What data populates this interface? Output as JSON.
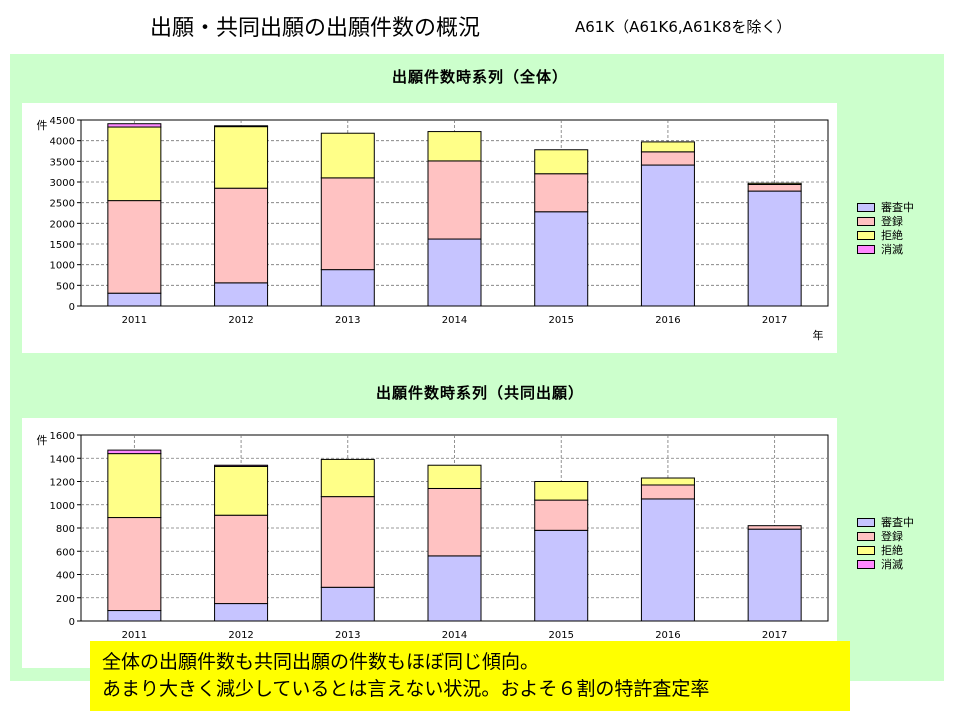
{
  "page": {
    "title": "出願・共同出願の出願件数の概況",
    "subtitle": "A61K（A61K6,A61K8を除く）"
  },
  "summary": {
    "line1": "全体の出願件数も共同出願の件数もほぼ同じ傾向。",
    "line2": "あまり大きく減少しているとは言えない状況。およそ６割の特許査定率"
  },
  "colors": {
    "審査中": "#c6c4ff",
    "登録": "#ffc2c2",
    "拒絶": "#ffff88",
    "消滅": "#ff88ff"
  },
  "chart_data": [
    {
      "type": "bar",
      "stacked": true,
      "title": "出願件数時系列（全体）",
      "ylabel": "件",
      "xlabel": "年",
      "ylim": [
        0,
        4500
      ],
      "yticks": [
        0,
        500,
        1000,
        1500,
        2000,
        2500,
        3000,
        3500,
        4000,
        4500
      ],
      "grid": true,
      "legend_position": "right",
      "categories": [
        "2011",
        "2012",
        "2013",
        "2014",
        "2015",
        "2016",
        "2017"
      ],
      "series": [
        {
          "name": "審査中",
          "values": [
            310,
            560,
            880,
            1620,
            2280,
            3410,
            2780
          ]
        },
        {
          "name": "登録",
          "values": [
            2240,
            2290,
            2220,
            1890,
            920,
            320,
            160
          ]
        },
        {
          "name": "拒絶",
          "values": [
            1780,
            1490,
            1080,
            710,
            580,
            240,
            30
          ]
        },
        {
          "name": "消滅",
          "values": [
            80,
            20,
            0,
            0,
            0,
            0,
            0
          ]
        }
      ]
    },
    {
      "type": "bar",
      "stacked": true,
      "title": "出願件数時系列（共同出願）",
      "ylabel": "件",
      "xlabel": "",
      "ylim": [
        0,
        1600
      ],
      "yticks": [
        0,
        200,
        400,
        600,
        800,
        1000,
        1200,
        1400,
        1600
      ],
      "grid": true,
      "legend_position": "right",
      "categories": [
        "2011",
        "2012",
        "2013",
        "2014",
        "2015",
        "2016",
        "2017"
      ],
      "series": [
        {
          "name": "審査中",
          "values": [
            90,
            150,
            290,
            560,
            780,
            1050,
            790
          ]
        },
        {
          "name": "登録",
          "values": [
            800,
            760,
            780,
            580,
            260,
            120,
            30
          ]
        },
        {
          "name": "拒絶",
          "values": [
            550,
            420,
            320,
            200,
            160,
            60,
            0
          ]
        },
        {
          "name": "消滅",
          "values": [
            30,
            10,
            0,
            0,
            0,
            0,
            0
          ]
        }
      ]
    }
  ]
}
